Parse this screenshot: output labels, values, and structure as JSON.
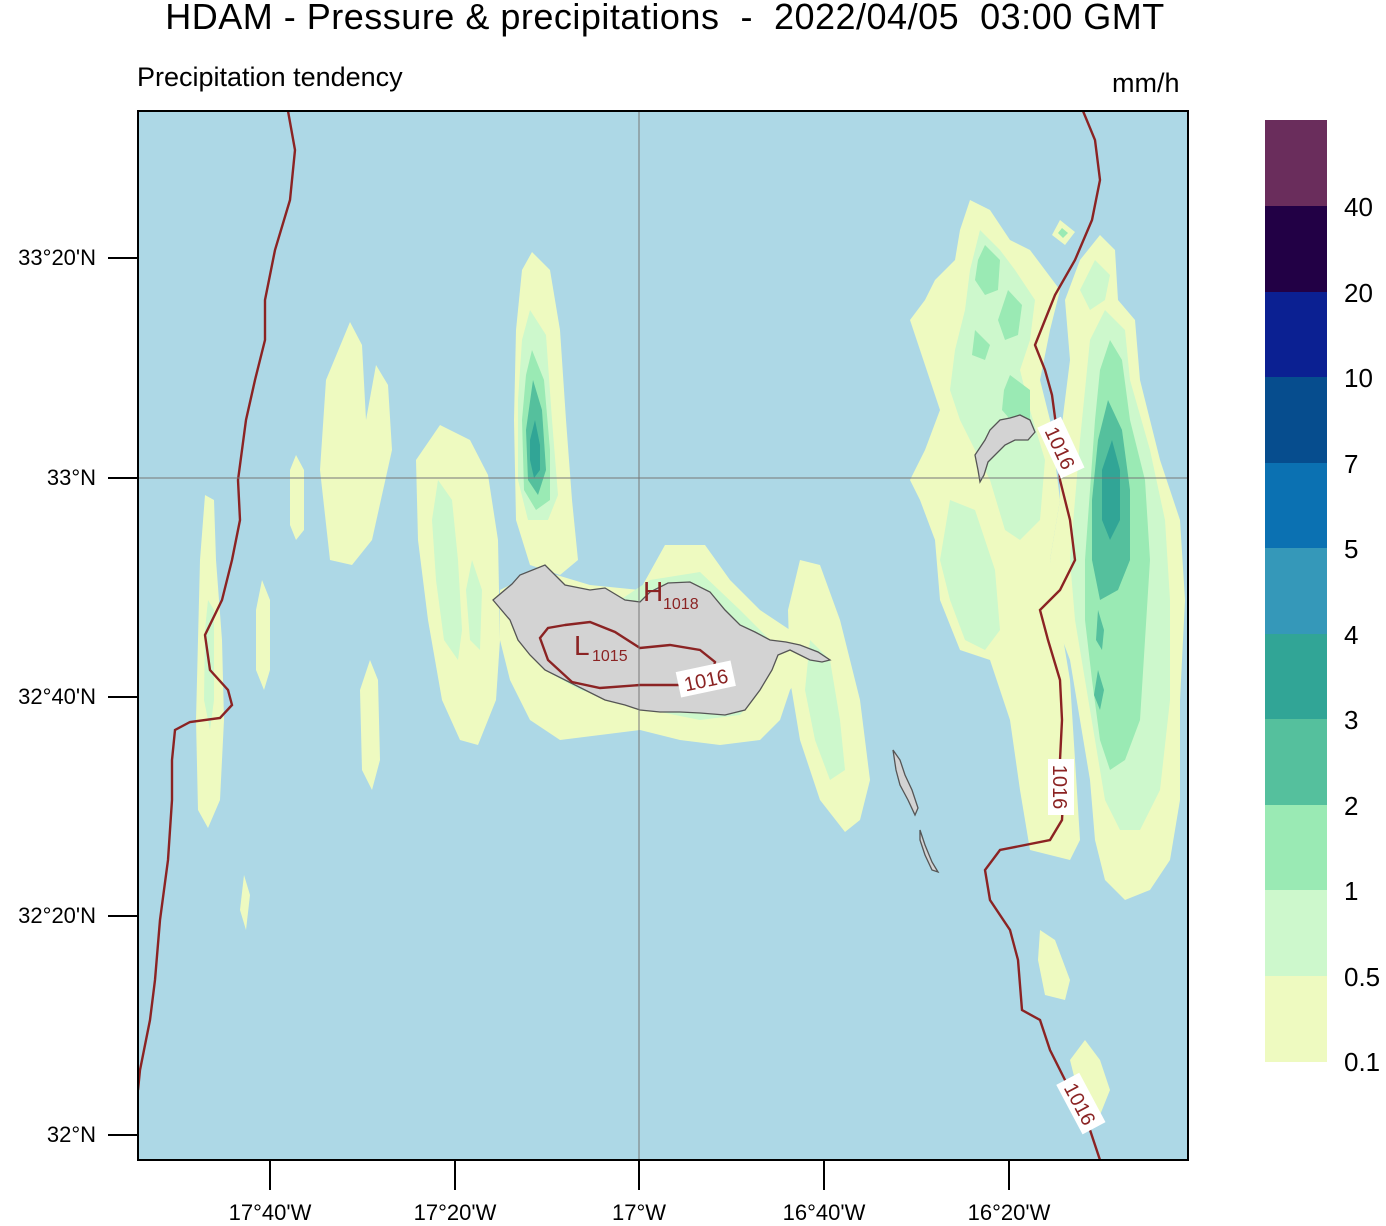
{
  "header": {
    "title": "HDAM - Pressure & precipitations  -  2022/04/05  03:00 GMT",
    "subtitle": "Precipitation tendency",
    "units": "mm/h"
  },
  "axes": {
    "lat_labels": [
      "33°20'N",
      "33°N",
      "32°40'N",
      "32°20'N",
      "32°N"
    ],
    "lon_labels": [
      "17°40'W",
      "17°20'W",
      "17°W",
      "16°40'W",
      "16°20'W"
    ]
  },
  "colorbar": {
    "levels": [
      "0.1",
      "0.5",
      "1",
      "2",
      "3",
      "4",
      "5",
      "7",
      "10",
      "20",
      "40"
    ],
    "colors": [
      "#eefac0",
      "#cdf8cc",
      "#9aeab4",
      "#55c09d",
      "#31a596",
      "#3598b9",
      "#0b71b2",
      "#064d8e",
      "#0b2092",
      "#220045",
      "#6a2d5c"
    ]
  },
  "isobars": {
    "labels": [
      "1016",
      "1016",
      "1016",
      "1016"
    ],
    "highs": [
      {
        "letter": "H",
        "value": "1018"
      }
    ],
    "lows": [
      {
        "letter": "L",
        "value": "1015"
      }
    ]
  },
  "colors": {
    "sea": "#add8e6",
    "isobar": "#8b2323",
    "land": "#d3d3d3"
  }
}
